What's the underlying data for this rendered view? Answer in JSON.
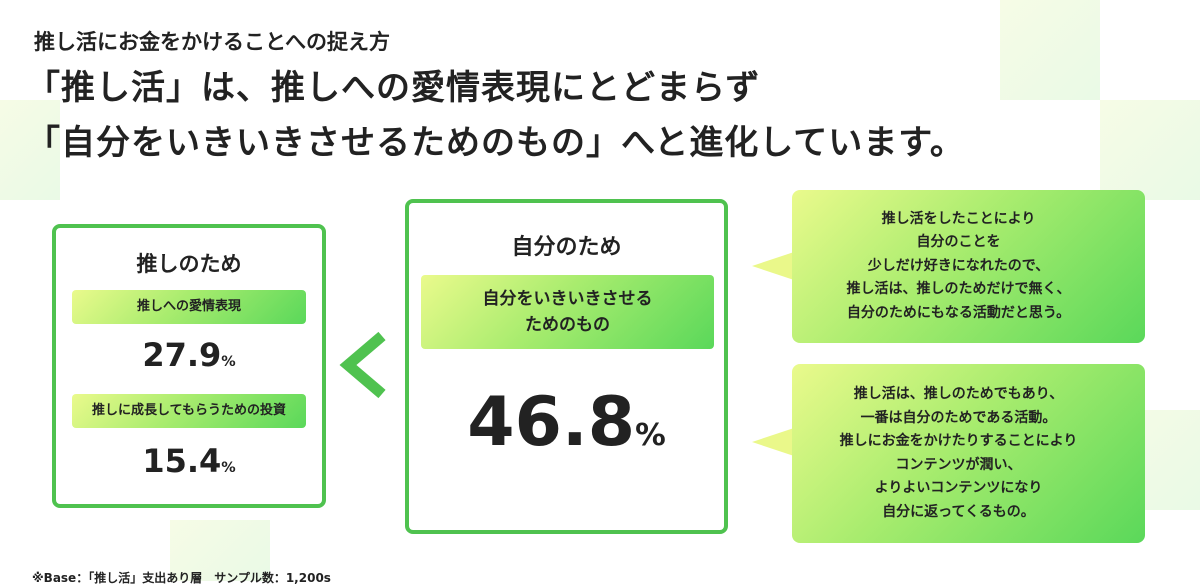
{
  "header": {
    "subtitle": "推し活にお金をかけることへの捉え方",
    "headline_1": "「推し活」は、推しへの愛情表現にとどまらず",
    "headline_2": "「自分をいきいきさせるためのもの」へと進化しています。"
  },
  "left_panel": {
    "title": "推しのため",
    "items": [
      {
        "label": "推しへの愛情表現",
        "value": "27.9",
        "unit": "%"
      },
      {
        "label": "推しに成長してもらうための投資",
        "value": "15.4",
        "unit": "%"
      }
    ]
  },
  "center_panel": {
    "title": "自分のため",
    "label_1": "自分をいきいきさせる",
    "label_2": "ためのもの",
    "value": "46.8",
    "unit": "%"
  },
  "comparison_icon": "chevron-left-icon",
  "quotes": [
    {
      "lines": [
        "推し活をしたことにより",
        "自分のことを",
        "少しだけ好きになれたので、",
        "推し活は、推しのためだけで無く、",
        "自分のためにもなる活動だと思う。"
      ]
    },
    {
      "lines": [
        "推し活は、推しのためでもあり、",
        "一番は自分のためである活動。",
        "推しにお金をかけたりすることにより",
        "コンテンツが潤い、",
        "よりよいコンテンツになり",
        "自分に返ってくるもの。"
      ]
    }
  ],
  "footnote": "※Base：「推し活」支出あり層　サンプル数：1,200s",
  "colors": {
    "accent_green": "#4fc24f",
    "gradient_start": "#eafa8c",
    "gradient_end": "#5ad85a"
  }
}
